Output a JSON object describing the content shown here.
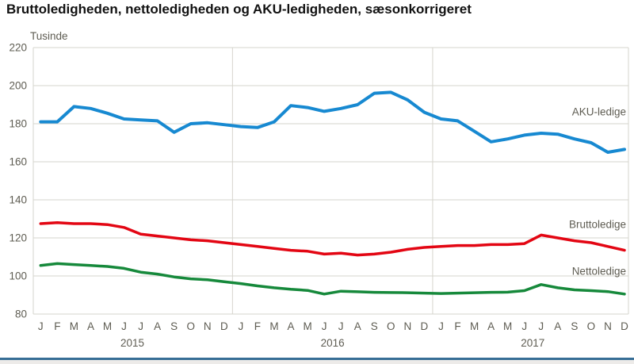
{
  "page": {
    "title": "Bruttoledigheden, nettoledigheden og AKU-ledigheden, sæsonkorrigeret"
  },
  "chart_data": {
    "type": "line",
    "title": "Bruttoledigheden, nettoledigheden og AKU-ledigheden, sæsonkorrigeret",
    "unit_label": "Tusinde",
    "ylim": [
      80,
      220
    ],
    "yticks": [
      220,
      200,
      180,
      160,
      140,
      120,
      100,
      80
    ],
    "grid": true,
    "month_labels": [
      "J",
      "F",
      "M",
      "A",
      "M",
      "J",
      "J",
      "A",
      "S",
      "O",
      "N",
      "D"
    ],
    "year_labels": [
      "2015",
      "2016",
      "2017"
    ],
    "legend_position": "right-inline",
    "series": [
      {
        "name": "AKU-ledige",
        "color": "#1789d1",
        "values": [
          181,
          181,
          189,
          188,
          185.5,
          182.5,
          182,
          181.5,
          175.5,
          180,
          180.5,
          179.5,
          178.5,
          178,
          181,
          189.5,
          188.5,
          186.5,
          188,
          190,
          196,
          196.5,
          192.5,
          186,
          182.5,
          181.5,
          176,
          170.5,
          172,
          174,
          175,
          174.5,
          172,
          170,
          165,
          166.5
        ]
      },
      {
        "name": "Bruttoledige",
        "color": "#e30613",
        "values": [
          127.5,
          128,
          127.5,
          127.5,
          127,
          125.5,
          122,
          121,
          120,
          119,
          118.5,
          117.5,
          116.5,
          115.5,
          114.5,
          113.5,
          113,
          111.5,
          112,
          111,
          111.5,
          112.5,
          114,
          115,
          115.5,
          116,
          116,
          116.5,
          116.5,
          117,
          121.5,
          120,
          118.5,
          117.5,
          115.5,
          113.5
        ]
      },
      {
        "name": "Nettoledige",
        "color": "#16893b",
        "values": [
          105.5,
          106.5,
          106,
          105.5,
          105,
          104,
          102,
          101,
          99.5,
          98.5,
          98,
          97,
          96,
          94.8,
          93.8,
          93,
          92.4,
          90.5,
          92,
          91.7,
          91.4,
          91.3,
          91.2,
          91,
          90.8,
          91,
          91.2,
          91.4,
          91.5,
          92.3,
          95.5,
          93.8,
          92.7,
          92.3,
          91.8,
          90.5
        ]
      }
    ],
    "colors": {
      "grid": "#d6d4cd",
      "axis_text": "#5e5c52",
      "footer_bar": "#376e96",
      "footer_strip": "#edebe9"
    }
  }
}
